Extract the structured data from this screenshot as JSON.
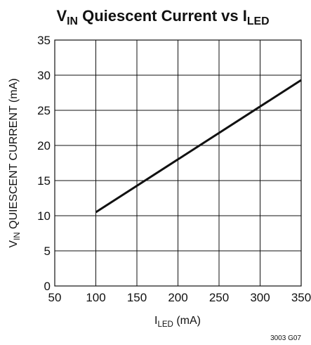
{
  "chart_data": {
    "type": "line",
    "title": {
      "main": "V",
      "main_sub": "IN",
      "middle": " Quiescent Current vs I",
      "end_sub": "LED"
    },
    "xlabel": {
      "pre": "I",
      "sub": "LED",
      "post": " (mA)"
    },
    "ylabel": {
      "pre": "V",
      "sub": "IN",
      "post": " QUIESCENT CURRENT (mA)"
    },
    "xlim": [
      50,
      350
    ],
    "ylim": [
      0,
      35
    ],
    "x_ticks": [
      50,
      100,
      150,
      200,
      250,
      300,
      350
    ],
    "y_ticks": [
      0,
      5,
      10,
      15,
      20,
      25,
      30,
      35
    ],
    "grid": true,
    "series": [
      {
        "x": [
          100,
          350
        ],
        "y": [
          10.5,
          29.3
        ]
      }
    ],
    "figure_id": "3003 G07"
  }
}
